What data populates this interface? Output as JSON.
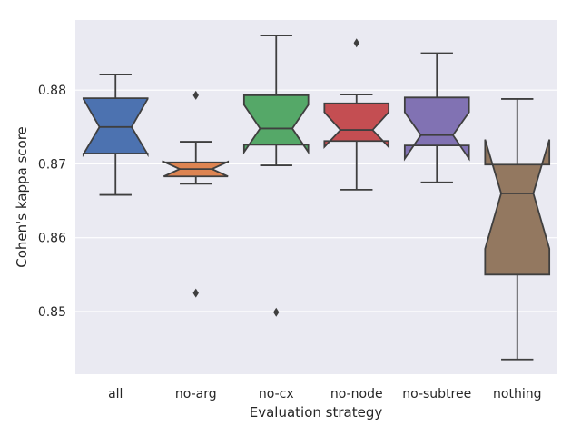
{
  "chart_data": {
    "type": "box",
    "notched": true,
    "title": "",
    "xlabel": "Evaluation strategy",
    "ylabel": "Cohen's kappa score",
    "ylim": [
      0.8415,
      0.8895
    ],
    "yticks": [
      0.85,
      0.86,
      0.87,
      0.88
    ],
    "ytick_labels": [
      "0.85",
      "0.86",
      "0.87",
      "0.88"
    ],
    "grid": true,
    "categories": [
      "all",
      "no-arg",
      "no-cx",
      "no-node",
      "no-subtree",
      "nothing"
    ],
    "boxes": [
      {
        "name": "all",
        "color": "#4c72b0",
        "whisker_low": 0.8658,
        "q1": 0.8714,
        "median": 0.875,
        "q3": 0.8789,
        "whisker_high": 0.8821,
        "notch_low": 0.8713,
        "notch_high": 0.8788,
        "outliers": []
      },
      {
        "name": "no-arg",
        "color": "#dd8452",
        "whisker_low": 0.8673,
        "q1": 0.8683,
        "median": 0.8693,
        "q3": 0.8702,
        "whisker_high": 0.873,
        "notch_low": 0.8683,
        "notch_high": 0.8703,
        "outliers": [
          0.8525,
          0.8793
        ]
      },
      {
        "name": "no-cx",
        "color": "#55a868",
        "whisker_low": 0.8698,
        "q1": 0.8726,
        "median": 0.8748,
        "q3": 0.8793,
        "whisker_high": 0.8874,
        "notch_low": 0.8716,
        "notch_high": 0.878,
        "outliers": [
          0.8499
        ]
      },
      {
        "name": "no-node",
        "color": "#c44e52",
        "whisker_low": 0.8665,
        "q1": 0.8731,
        "median": 0.8746,
        "q3": 0.8782,
        "whisker_high": 0.8794,
        "notch_low": 0.8723,
        "notch_high": 0.877,
        "outliers": [
          0.8864
        ]
      },
      {
        "name": "no-subtree",
        "color": "#8172b3",
        "whisker_low": 0.8675,
        "q1": 0.8725,
        "median": 0.8739,
        "q3": 0.879,
        "whisker_high": 0.885,
        "notch_low": 0.8707,
        "notch_high": 0.877,
        "outliers": []
      },
      {
        "name": "nothing",
        "color": "#937860",
        "whisker_low": 0.8435,
        "q1": 0.855,
        "median": 0.866,
        "q3": 0.8699,
        "whisker_high": 0.8788,
        "notch_low": 0.8585,
        "notch_high": 0.8733,
        "outliers": []
      }
    ]
  }
}
